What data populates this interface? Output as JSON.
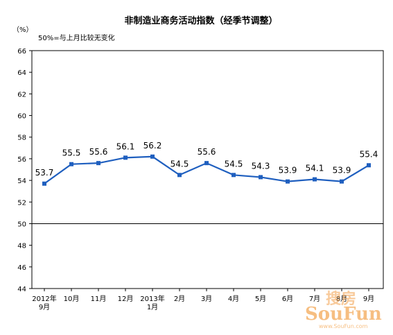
{
  "chart_data": {
    "type": "line",
    "title": "非制造业商务活动指数（经季节调整）",
    "ylabel": "（%）",
    "note": "50%=与上月比较无变化",
    "ylim": [
      44,
      66
    ],
    "yticks": [
      "44",
      "46",
      "48",
      "50",
      "52",
      "54",
      "56",
      "58",
      "60",
      "62",
      "64",
      "66"
    ],
    "categories": [
      [
        "2012年",
        "9月"
      ],
      [
        "10月"
      ],
      [
        "11月"
      ],
      [
        "12月"
      ],
      [
        "2013年",
        "1月"
      ],
      [
        "2月"
      ],
      [
        "3月"
      ],
      [
        "4月"
      ],
      [
        "5月"
      ],
      [
        "6月"
      ],
      [
        "7月"
      ],
      [
        "8月"
      ],
      [
        "9月"
      ]
    ],
    "series": [
      {
        "values": [
          53.7,
          55.5,
          55.6,
          56.1,
          56.2,
          54.5,
          55.6,
          54.5,
          54.3,
          53.9,
          54.1,
          53.9,
          55.4
        ],
        "color": "#1f5fbf"
      }
    ],
    "baseline": 50,
    "grid": false
  },
  "watermark": {
    "cn": "搜房",
    "en": "SouFun",
    "url": "www.SouFun.com"
  }
}
